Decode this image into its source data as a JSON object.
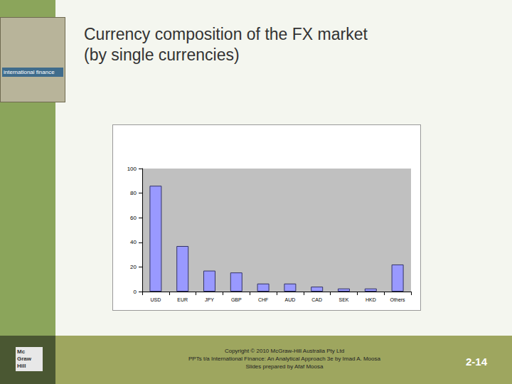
{
  "slide": {
    "cover_title": "international finance",
    "logo": [
      "Mc",
      "Graw",
      "Hill"
    ],
    "footer": [
      "Copyright © 2010 McGraw-Hill Australia Pty Ltd",
      "PPTs t/a International Finance: An Analytical Approach 3e by Imad A. Moosa",
      "Slides prepared by Afaf Moosa"
    ],
    "page": "2-14"
  },
  "chart_data": {
    "type": "bar",
    "title": "Currency composition of the FX market\n(by single currencies)",
    "categories": [
      "USD",
      "EUR",
      "JPY",
      "GBP",
      "CHF",
      "AUD",
      "CAD",
      "SEK",
      "HKD",
      "Others"
    ],
    "values": [
      86,
      37,
      17,
      15.5,
      6.5,
      6.5,
      4,
      2.5,
      2.5,
      22
    ],
    "color": "#9999ff",
    "ylim": [
      0,
      100
    ],
    "yticks": [
      0,
      20,
      40,
      60,
      80,
      100
    ],
    "grid": false
  }
}
